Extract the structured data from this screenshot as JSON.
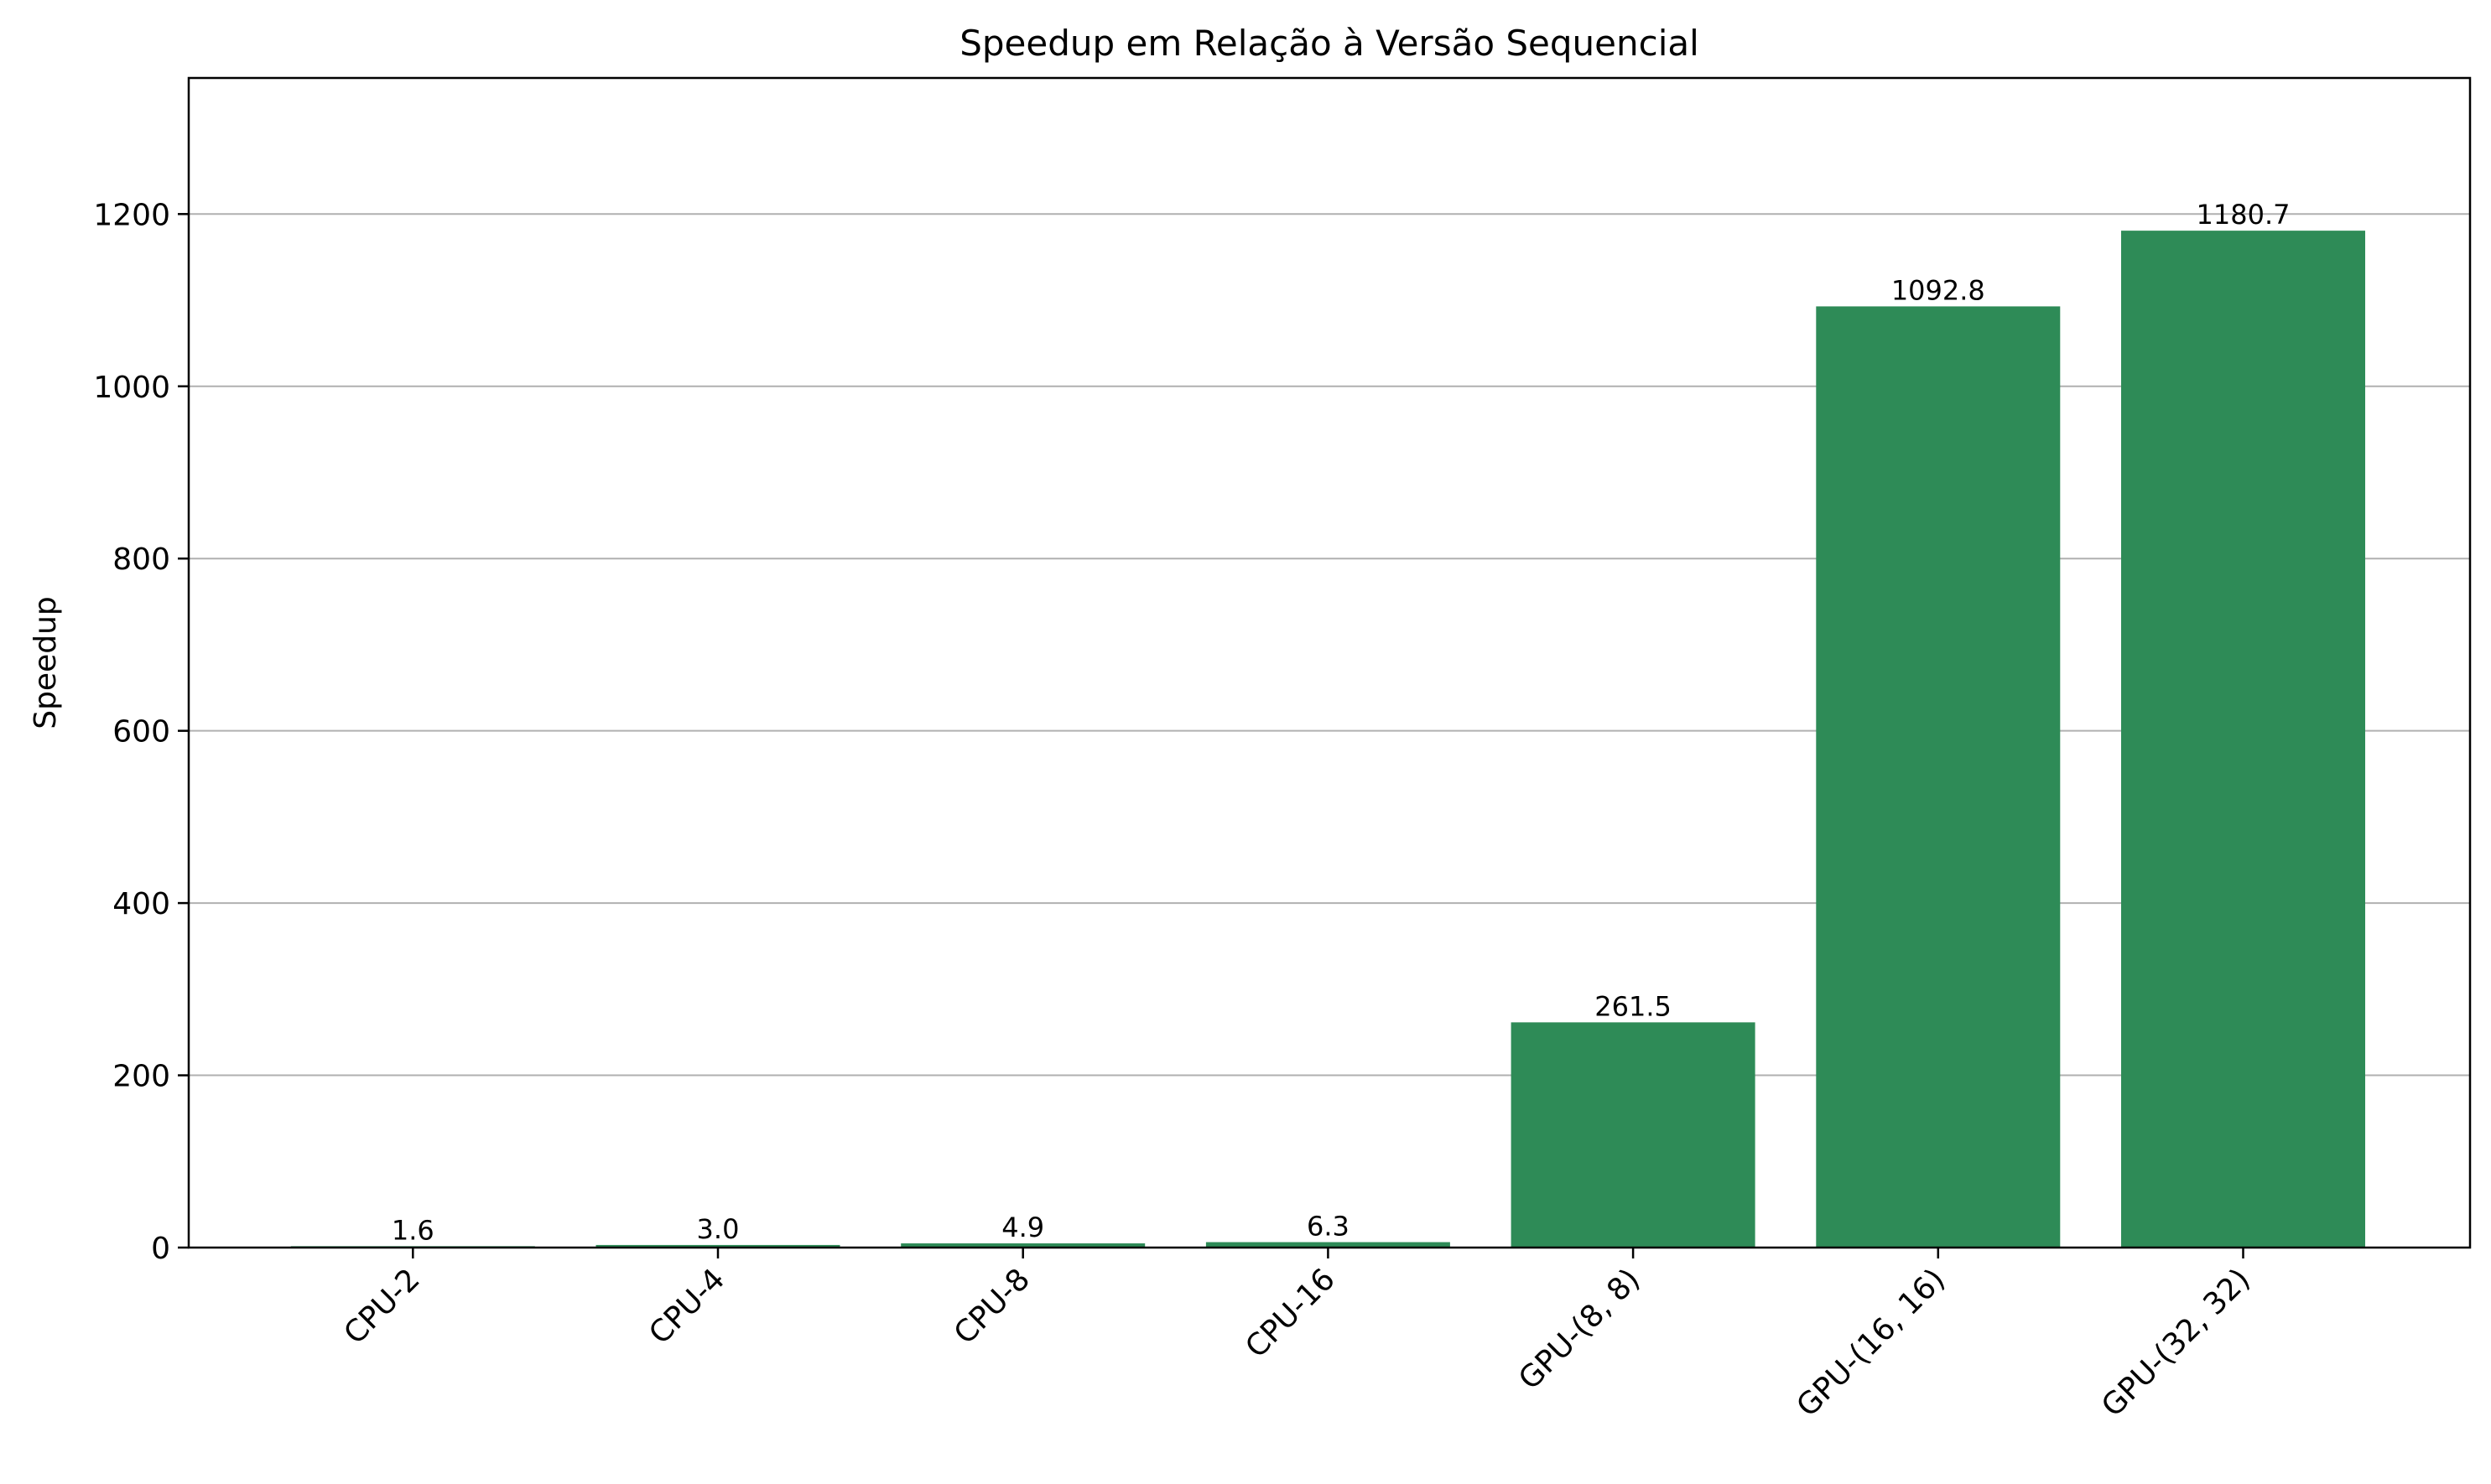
{
  "chart_data": {
    "type": "bar",
    "title": "Speedup em Relação à Versão Sequencial",
    "xlabel": "",
    "ylabel": "Speedup",
    "categories": [
      "CPU-2",
      "CPU-4",
      "CPU-8",
      "CPU-16",
      "GPU-(8, 8)",
      "GPU-(16, 16)",
      "GPU-(32, 32)"
    ],
    "values": [
      1.6,
      3.0,
      4.9,
      6.3,
      261.5,
      1092.8,
      1180.7
    ],
    "data_labels": [
      "1.6",
      "3.0",
      "4.9",
      "6.3",
      "261.5",
      "1092.8",
      "1180.7"
    ],
    "ylim": [
      0,
      1358
    ],
    "yticks": [
      0,
      200,
      400,
      600,
      800,
      1000,
      1200
    ],
    "grid": "y-axis",
    "legend": "none",
    "bar_color": "#2e8b57",
    "grid_color": "#b0b0b0"
  }
}
